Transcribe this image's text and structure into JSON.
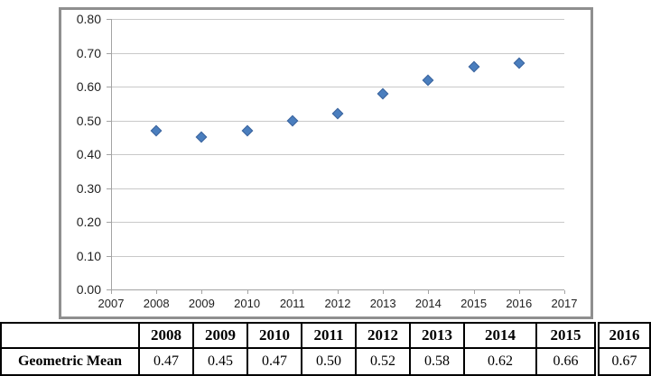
{
  "chart_data": {
    "type": "scatter",
    "title": "",
    "xlabel": "",
    "ylabel": "",
    "series": [
      {
        "name": "Geometric Mean",
        "x": [
          2008,
          2009,
          2010,
          2011,
          2012,
          2013,
          2014,
          2015,
          2016
        ],
        "y": [
          0.47,
          0.45,
          0.47,
          0.5,
          0.52,
          0.58,
          0.62,
          0.66,
          0.67
        ]
      }
    ],
    "xlim": [
      2007,
      2017
    ],
    "ylim": [
      0.0,
      0.8
    ],
    "x_tick_labels": [
      "2007",
      "2008",
      "2009",
      "2010",
      "2011",
      "2012",
      "2013",
      "2014",
      "2015",
      "2016",
      "2017"
    ],
    "y_tick_labels": [
      "0.00",
      "0.10",
      "0.20",
      "0.30",
      "0.40",
      "0.50",
      "0.60",
      "0.70",
      "0.80"
    ],
    "grid": true,
    "legend_position": "none",
    "marker": {
      "shape": "diamond",
      "fill": "#4a7ebe",
      "stroke": "#3a639c"
    }
  },
  "table": {
    "corner_label": "",
    "row_label": "Geometric Mean",
    "years": [
      "2008",
      "2009",
      "2010",
      "2011",
      "2012",
      "2013",
      "2014",
      "2015",
      "2016"
    ],
    "values": [
      "0.47",
      "0.45",
      "0.47",
      "0.50",
      "0.52",
      "0.58",
      "0.62",
      "0.66",
      "0.67"
    ]
  },
  "colors": {
    "chart_border": "#8f8f8f",
    "gridline": "#c9c9c9",
    "axis_line": "#a3a3a3",
    "tick_text": "#1f1f1f",
    "marker_fill": "#4a7ebe",
    "marker_stroke": "#3a639c",
    "table_border": "#000000"
  }
}
